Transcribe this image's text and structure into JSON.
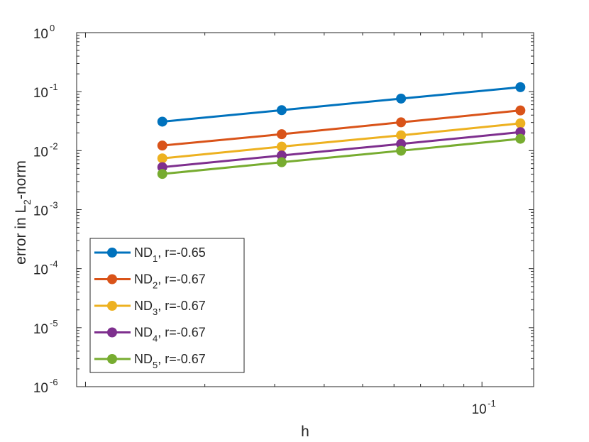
{
  "chart_data": {
    "type": "line",
    "title": "",
    "xscale": "log",
    "yscale": "log",
    "xlabel": "h",
    "ylabel": {
      "prefix": "error in L",
      "sub": "2",
      "suffix": "-norm"
    },
    "xlim": [
      0.0095,
      0.135
    ],
    "ylim": [
      1e-06,
      1
    ],
    "x": [
      0.015625,
      0.03125,
      0.0625,
      0.125
    ],
    "x_ticks": [
      {
        "value": 0.1,
        "base": "10",
        "exp": "-1"
      }
    ],
    "y_ticks": [
      {
        "value": 1e-06,
        "base": "10",
        "exp": "-6"
      },
      {
        "value": 1e-05,
        "base": "10",
        "exp": "-5"
      },
      {
        "value": 0.0001,
        "base": "10",
        "exp": "-4"
      },
      {
        "value": 0.001,
        "base": "10",
        "exp": "-3"
      },
      {
        "value": 0.01,
        "base": "10",
        "exp": "-2"
      },
      {
        "value": 0.1,
        "base": "10",
        "exp": "-1"
      },
      {
        "value": 1,
        "base": "10",
        "exp": "0"
      }
    ],
    "grid": false,
    "legend_position": "bottom-left",
    "series": [
      {
        "name": "ND",
        "sub": "1",
        "rate": ", r=-0.65",
        "color": "#0072BD",
        "values": [
          0.031,
          0.0485,
          0.0762,
          0.119
        ]
      },
      {
        "name": "ND",
        "sub": "2",
        "rate": ", r=-0.67",
        "color": "#D95319",
        "values": [
          0.0122,
          0.019,
          0.0302,
          0.048
        ]
      },
      {
        "name": "ND",
        "sub": "3",
        "rate": ", r=-0.67",
        "color": "#EDB120",
        "values": [
          0.0074,
          0.0117,
          0.0182,
          0.029
        ]
      },
      {
        "name": "ND",
        "sub": "4",
        "rate": ", r=-0.67",
        "color": "#7E2F8E",
        "values": [
          0.00525,
          0.00828,
          0.013,
          0.0206
        ]
      },
      {
        "name": "ND",
        "sub": "5",
        "rate": ", r=-0.67",
        "color": "#77AC30",
        "values": [
          0.00403,
          0.00636,
          0.00997,
          0.0159
        ]
      }
    ]
  }
}
